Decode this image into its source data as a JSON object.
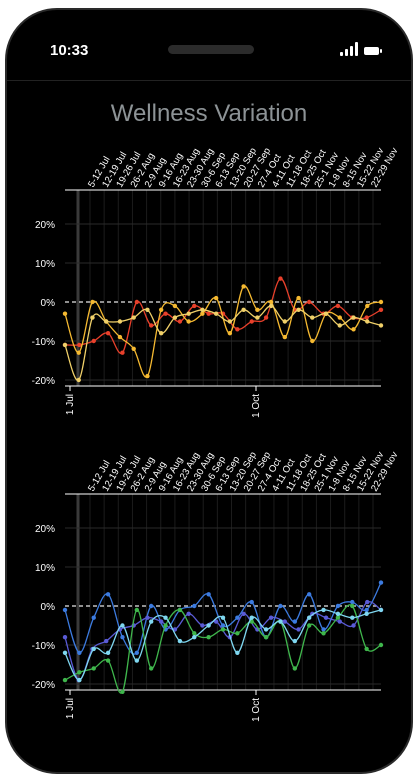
{
  "status_bar": {
    "time": "10:33"
  },
  "page": {
    "title": "Wellness Variation"
  },
  "chart_data": [
    {
      "type": "line",
      "title": "",
      "x_axis_top_labels": [
        "5-12 Jul",
        "12-19 Jul",
        "19-26 Jul",
        "26-2 Aug",
        "2-9 Aug",
        "9-16 Aug",
        "16-23 Aug",
        "23-30 Aug",
        "30-6 Sep",
        "6-13 Sep",
        "13-20 Sep",
        "20-27 Sep",
        "27-4 Oct",
        "4-11 Oct",
        "11-18 Oct",
        "18-25 Oct",
        "25-1 Nov",
        "1-8 Nov",
        "8-15 Nov",
        "15-22 Nov",
        "22-29 Nov"
      ],
      "x_axis_bottom_labels": [
        "1 Jul",
        "1 Oct"
      ],
      "yticks": [
        "20%",
        "10%",
        "0%",
        "-10%",
        "-20%"
      ],
      "ylim": [
        -20,
        20
      ],
      "series": [
        {
          "color": "#e8402b",
          "values": [
            -11,
            -11,
            -10,
            -8,
            -13,
            0,
            -6,
            -3,
            -5,
            -1,
            -3,
            -3,
            -7,
            -5,
            -4,
            6,
            -2,
            0,
            -3,
            -1,
            -4,
            -4,
            -2
          ]
        },
        {
          "color": "#f5b931",
          "values": [
            -3,
            -13,
            0,
            -5,
            -9,
            -12,
            -19,
            -2,
            -1,
            -5,
            -3,
            1,
            -8,
            4,
            -2,
            0,
            -9,
            1,
            -10,
            -3,
            -4,
            -7,
            -1,
            0
          ]
        },
        {
          "color": "#f0d069",
          "values": [
            -11,
            -20,
            -4,
            -5,
            -5,
            -4,
            -2,
            -8,
            -4,
            -3,
            -2,
            -3,
            -5,
            -2,
            -4,
            -1,
            -5,
            -2,
            -4,
            -3,
            -6,
            -4,
            -5,
            -6
          ]
        }
      ]
    },
    {
      "type": "line",
      "title": "",
      "x_axis_top_labels": [
        "5-12 Jul",
        "12-19 Jul",
        "19-26 Jul",
        "26-2 Aug",
        "2-9 Aug",
        "9-16 Aug",
        "16-23 Aug",
        "23-30 Aug",
        "30-6 Sep",
        "6-13 Sep",
        "13-20 Sep",
        "20-27 Sep",
        "27-4 Oct",
        "4-11 Oct",
        "11-18 Oct",
        "18-25 Oct",
        "25-1 Nov",
        "1-8 Nov",
        "8-15 Nov",
        "15-22 Nov",
        "22-29 Nov"
      ],
      "x_axis_bottom_labels": [
        "1 Jul",
        "1 Oct"
      ],
      "yticks": [
        "20%",
        "10%",
        "0%",
        "-10%",
        "-20%"
      ],
      "ylim": [
        -20,
        20
      ],
      "series": [
        {
          "color": "#3c7be0",
          "values": [
            -1,
            -12,
            -3,
            3,
            -8,
            -12,
            0,
            -6,
            -1,
            0,
            3,
            -5,
            -3,
            1,
            -8,
            0,
            -4,
            3,
            -6,
            0,
            1,
            -1,
            6
          ]
        },
        {
          "color": "#5a5bd6",
          "values": [
            -8,
            -19,
            -11,
            -9,
            -6,
            -5,
            -3,
            -4,
            -6,
            -2,
            -5,
            -4,
            -8,
            -2,
            -6,
            -3,
            -4,
            -6,
            -2,
            -3,
            -4,
            -5,
            1,
            -1
          ]
        },
        {
          "color": "#3fb64c",
          "values": [
            -19,
            -17,
            -16,
            -14,
            -22,
            -1,
            -16,
            -5,
            -1,
            -7,
            -8,
            -6,
            -7,
            -4,
            -8,
            -4,
            -16,
            -5,
            -7,
            -3,
            0,
            -11,
            -10
          ]
        },
        {
          "color": "#7fd7f0",
          "values": [
            -12,
            -19,
            -11,
            -12,
            -5,
            -14,
            -4,
            -3,
            -9,
            -8,
            -5,
            -3,
            -12,
            -3,
            -6,
            -4,
            -9,
            -3,
            -1,
            -2,
            -3,
            -2,
            -1
          ]
        }
      ]
    }
  ]
}
